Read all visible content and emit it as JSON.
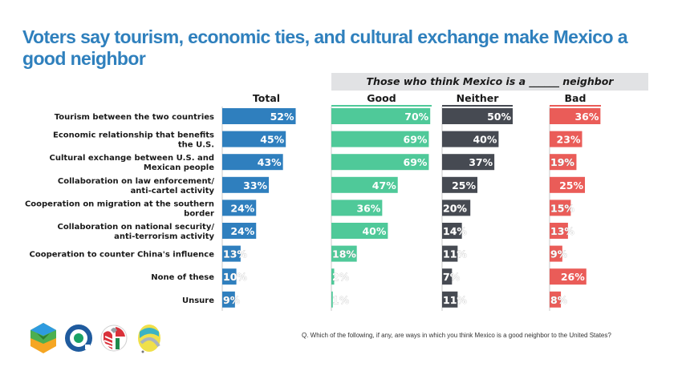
{
  "title": "Voters say tourism, economic ties, and cultural exchange make Mexico a good neighbor",
  "group_header": "Those who think Mexico is a ______ neighbor",
  "footnote": "Q. Which of the following, if any, are ways in which you think Mexico is a good neighbor to the United States?",
  "logos": [
    "hexagon-cube-logo",
    "ring-dot-logo",
    "flags-circle-logo",
    "swoosh-circle-logo"
  ],
  "chart_data": {
    "type": "bar",
    "orientation": "horizontal",
    "title": "Voters say tourism, economic ties, and cultural exchange make Mexico a good neighbor",
    "xlabel": "",
    "ylabel": "",
    "unit": "%",
    "xlim": [
      0,
      100
    ],
    "grid": false,
    "categories": [
      "Tourism between the two countries",
      "Economic relationship that benefits the U.S.",
      "Cultural exchange between U.S. and Mexican people",
      "Collaboration on law enforcement/ anti-cartel activity",
      "Cooperation on migration at the southern border",
      "Collaboration on national security/ anti-terrorism activity",
      "Cooperation to counter China's influence",
      "None of these",
      "Unsure"
    ],
    "category_lines": [
      [
        "Tourism between the two countries"
      ],
      [
        "Economic relationship that benefits",
        "the U.S."
      ],
      [
        "Cultural exchange between U.S. and",
        "Mexican people"
      ],
      [
        "Collaboration on law enforcement/",
        "anti-cartel activity"
      ],
      [
        "Cooperation on migration at the southern",
        "border"
      ],
      [
        "Collaboration on national security/",
        "anti-terrorism activity"
      ],
      [
        "Cooperation to counter China's influence"
      ],
      [
        "None of these"
      ],
      [
        "Unsure"
      ]
    ],
    "series": [
      {
        "name": "Total",
        "color": "#2f7fbe",
        "values": [
          52,
          45,
          43,
          33,
          24,
          24,
          13,
          10,
          9
        ]
      },
      {
        "name": "Good",
        "color": "#4fc999",
        "values": [
          70,
          69,
          69,
          47,
          36,
          40,
          18,
          2,
          1
        ]
      },
      {
        "name": "Neither",
        "color": "#464a52",
        "values": [
          50,
          40,
          37,
          25,
          20,
          14,
          11,
          7,
          11
        ]
      },
      {
        "name": "Bad",
        "color": "#ea5c58",
        "values": [
          36,
          23,
          19,
          25,
          15,
          13,
          9,
          26,
          8
        ]
      }
    ]
  }
}
